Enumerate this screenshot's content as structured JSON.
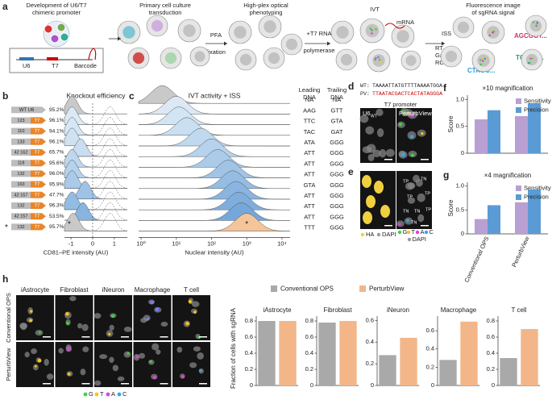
{
  "panel_a": {
    "label": "a",
    "steps": [
      [
        "Development of U6/T7",
        "chimeric promoter"
      ],
      [
        "Primary cell culture",
        "transduction"
      ],
      [
        "High-plex optical",
        "phenotyping"
      ],
      [
        "IVT"
      ],
      [
        "Fluorescence image",
        "of sgRNA signal"
      ]
    ],
    "arrows": [
      [
        "PFA",
        "fixation"
      ],
      [
        "+T7 RNA",
        "polymerase"
      ]
    ],
    "construct": [
      "U6",
      "T7",
      "Barcode"
    ],
    "mrna": "mRNA",
    "iss": [
      "ISS",
      "RT",
      "Gap fill",
      "RCA"
    ],
    "reads": [
      "AGCGGT...",
      "CTAGC...",
      "TGTGC..."
    ]
  },
  "panel_d": {
    "label": "d",
    "wt_label": "WT:",
    "wt_seq": "TAAAATTATGTTTTAAAATGGA",
    "pv_label": "PV:",
    "pv_seq": "TTAATACGACTCACTATAGGGA",
    "promoter": "T7 promoter",
    "img1": "U6",
    "img1_sub": "WT",
    "img2": "PerturbView"
  },
  "panel_e": {
    "label": "e",
    "tags": [
      "TP",
      "TN",
      "TP",
      "TP",
      "TN",
      "TN",
      "TP",
      "TN"
    ],
    "legend1": [
      "HA",
      "DAPI"
    ],
    "legend2": [
      "G",
      "T",
      "A",
      "C",
      "DAPI"
    ]
  },
  "panel_h": {
    "label": "h",
    "cols": [
      "iAstrocyte",
      "Fibroblast",
      "iNeuron",
      "Macrophage",
      "T cell"
    ],
    "rows": [
      "Conventional OPS",
      "PerturbView"
    ],
    "bases": [
      "G",
      "T",
      "A",
      "C"
    ],
    "ylabel": "Fraction of cells with sgRNA",
    "legend": [
      {
        "name": "Conventional OPS",
        "color": "#a9a9a9"
      },
      {
        "name": "PerturbView",
        "color": "#f2b689"
      }
    ]
  },
  "chart_data": [
    {
      "type": "ridgeline",
      "label": "b",
      "title": "Knockout efficiency",
      "rows": [
        "WT U6",
        "123",
        "110",
        "133",
        "42 162",
        "118",
        "132",
        "163",
        "42 157",
        "132",
        "42 157",
        "132"
      ],
      "arrow_label": "T7",
      "pct": [
        "95.2%",
        "96.1%",
        "94.1%",
        "96.1%",
        "65.7%",
        "95.6%",
        "96.0%",
        "95.9%",
        "47.7%",
        "96.3%",
        "53.5%",
        "95.7%"
      ],
      "peaks": [
        -0.95,
        -0.95,
        -0.95,
        -0.95,
        -0.55,
        -0.95,
        -0.95,
        -0.95,
        -0.35,
        -0.95,
        -0.45,
        -0.9
      ],
      "control_peak": 0.8,
      "star": "*",
      "colors": [
        "#c9c9c9",
        "#dce9f5",
        "#d6e6f4",
        "#d0e2f2",
        "#c8ddf0",
        "#bfd7ee",
        "#b5d1ec",
        "#aacaea",
        "#9fc3e7",
        "#93bce4",
        "#87b4e1",
        "#c9c9c9"
      ],
      "xlabel": "CD81–PE intensity (AU)",
      "xlim": [
        -1.3,
        1.6
      ],
      "xticks": [
        -1,
        0,
        1
      ]
    },
    {
      "type": "ridgeline",
      "label": "c",
      "title": "IVT activity + ISS",
      "log": true,
      "peaks": [
        4,
        10,
        12,
        20,
        50,
        100,
        150,
        300,
        400,
        500,
        600,
        700,
        1000
      ],
      "colors": [
        "#c9c9c9",
        "#dce9f5",
        "#d3e4f3",
        "#cadff1",
        "#c0d9ee",
        "#b6d2ec",
        "#abcbe9",
        "#a0c4e6",
        "#95bde3",
        "#8ab5e0",
        "#7faedd",
        "#74a7da",
        "#f4c49b"
      ],
      "star": "*",
      "leading_header": [
        "Leading",
        "DNA"
      ],
      "trailing_header": [
        "Trailing",
        "DNA"
      ],
      "leading": [
        "NA",
        "AAG",
        "TTC",
        "TAC",
        "ATA",
        "ATT",
        "ATT",
        "ATT",
        "GTA",
        "ATT",
        "ATT",
        "ATT",
        "TTT"
      ],
      "trailing": [
        "NA",
        "GTT",
        "GTA",
        "GAT",
        "GGG",
        "GGG",
        "GGG",
        "GGG",
        "GGG",
        "GGG",
        "GGG",
        "GGG",
        "GGG"
      ],
      "xlabel": "Nuclear intensity (AU)",
      "xlim": [
        0.85,
        17000
      ],
      "xticks": [
        {
          "value": 1,
          "label": "10⁰"
        },
        {
          "value": 10,
          "label": "10¹"
        },
        {
          "value": 100,
          "label": "10²"
        },
        {
          "value": 1000,
          "label": "10³"
        },
        {
          "value": 10000,
          "label": "10⁴"
        }
      ]
    },
    {
      "type": "bar",
      "label": "f",
      "title": "×10 magnification",
      "ylabel": "Score",
      "ylim": [
        0,
        1.08
      ],
      "yticks": [
        0,
        0.5,
        {
          "value": 1,
          "label": "1.0"
        }
      ],
      "series": [
        {
          "name": "Sensitivity",
          "color": "#b9a0d2",
          "values": [
            0.63,
            0.69
          ]
        },
        {
          "name": "Precision",
          "color": "#5b9bd5",
          "values": [
            0.8,
            0.93
          ]
        }
      ]
    },
    {
      "type": "bar",
      "label": "g",
      "title": "×4 magnification",
      "ylabel": "Score",
      "ylim": [
        0,
        1.08
      ],
      "yticks": [
        0,
        0.5,
        {
          "value": 1,
          "label": "1.0"
        }
      ],
      "categories": [
        "Conventional OPS",
        "PerturbView"
      ],
      "series": [
        {
          "name": "Sensitivity",
          "color": "#b9a0d2",
          "values": [
            0.31,
            0.66
          ]
        },
        {
          "name": "Precision",
          "color": "#5b9bd5",
          "values": [
            0.6,
            0.93
          ]
        }
      ]
    },
    {
      "type": "hbar",
      "title": "iAstrocyte",
      "ylim": [
        0,
        0.86
      ],
      "yticks": [
        0,
        0.2,
        0.4,
        0.6,
        0.8
      ],
      "values": [
        0.8,
        0.8
      ]
    },
    {
      "type": "hbar",
      "title": "Fibroblast",
      "ylim": [
        0,
        0.86
      ],
      "yticks": [
        0,
        0.2,
        0.4,
        0.6,
        0.8
      ],
      "values": [
        0.78,
        0.8
      ]
    },
    {
      "type": "hbar",
      "title": "iNeuron",
      "ylim": [
        0,
        0.64
      ],
      "yticks": [
        0,
        0.2,
        0.4,
        0.6
      ],
      "values": [
        0.28,
        0.44
      ]
    },
    {
      "type": "hbar",
      "title": "Macrophage",
      "ylim": [
        0,
        0.76
      ],
      "yticks": [
        0,
        0.2,
        0.4,
        0.6
      ],
      "values": [
        0.28,
        0.7
      ]
    },
    {
      "type": "hbar",
      "title": "T cell",
      "ylim": [
        0,
        0.86
      ],
      "yticks": [
        0,
        0.2,
        0.4,
        0.6,
        0.8
      ],
      "values": [
        0.34,
        0.7
      ]
    }
  ]
}
